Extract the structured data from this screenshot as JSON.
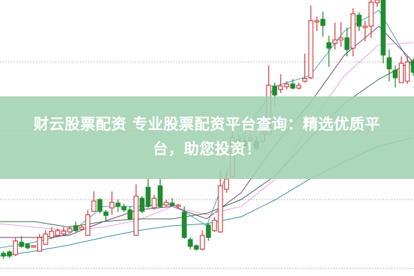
{
  "banner": {
    "line1": "财云股票配资 专业股票配资平台查询：精选优质平",
    "line2": "台，助您投资！"
  },
  "colors": {
    "up": "#d23a3a",
    "down": "#1e8c2e",
    "grid": "#9a9a9a",
    "banner": "#a0d2b0"
  },
  "chart_data": {
    "type": "candlestick",
    "title": "",
    "xlabel": "",
    "ylabel": "",
    "ylim": [
      0,
      100
    ],
    "grid": true,
    "gridlines": [
      77.5,
      52.5,
      27.5,
      2.5
    ],
    "candles": [
      [
        8,
        7,
        8.75,
        6
      ],
      [
        8.5,
        7,
        9,
        6.25
      ],
      [
        7.5,
        12.5,
        13.75,
        7
      ],
      [
        12,
        10.5,
        14.25,
        10
      ],
      [
        11.25,
        10,
        11.75,
        9.5
      ],
      [
        10.25,
        10.75,
        11,
        10
      ],
      [
        8.75,
        13.75,
        15,
        8.5
      ],
      [
        11.25,
        15,
        16.25,
        11
      ],
      [
        13.75,
        16,
        17.5,
        13.25
      ],
      [
        14.5,
        16.25,
        17,
        14
      ],
      [
        15,
        16,
        17.5,
        14.5
      ],
      [
        15.75,
        17,
        18,
        15.5
      ],
      [
        18,
        16.25,
        19.5,
        15.75
      ],
      [
        16.75,
        17.5,
        18.25,
        16.5
      ],
      [
        14.5,
        22,
        23.75,
        14.5
      ],
      [
        23.25,
        27,
        30.5,
        23
      ],
      [
        27.5,
        23.25,
        28,
        22.5
      ],
      [
        23,
        21.75,
        23.75,
        20
      ],
      [
        24.5,
        26.5,
        30.5,
        22
      ],
      [
        26.25,
        25,
        27.5,
        23
      ],
      [
        25,
        23.75,
        26,
        23
      ],
      [
        23.75,
        20.5,
        25,
        20
      ],
      [
        14.5,
        28.75,
        33,
        14.5
      ],
      [
        28,
        23.25,
        28.75,
        22.5
      ],
      [
        32,
        25,
        35,
        24.5
      ],
      [
        24.5,
        28,
        29.25,
        23.75
      ],
      [
        32.5,
        25,
        35,
        24.5
      ],
      [
        25.5,
        26.5,
        27.5,
        25
      ],
      [
        26.25,
        25.25,
        28,
        25
      ],
      [
        25,
        25.5,
        26,
        24.5
      ],
      [
        23,
        13.75,
        25,
        13.25
      ],
      [
        13,
        10.5,
        13.75,
        9.5
      ],
      [
        10.75,
        9.5,
        11.25,
        9
      ],
      [
        9.5,
        14.5,
        16.25,
        9
      ],
      [
        18.25,
        13.75,
        18.75,
        12.5
      ],
      [
        16.25,
        20,
        21.25,
        15.75
      ],
      [
        15.75,
        32.5,
        38,
        15.5
      ],
      [
        31.25,
        35,
        37.5,
        30
      ],
      [
        35.75,
        50,
        53.75,
        35.5
      ],
      [
        49.25,
        47.5,
        51.25,
        46.25
      ],
      [
        48.75,
        47,
        50.5,
        45.5
      ],
      [
        49,
        50,
        51.25,
        47.5
      ],
      [
        48.75,
        46.25,
        50.5,
        45.5
      ],
      [
        48.75,
        51.5,
        53.75,
        47.5
      ],
      [
        51.25,
        69,
        76.25,
        51
      ],
      [
        68.75,
        65.5,
        70,
        61.75
      ],
      [
        67.5,
        68.75,
        73,
        66.25
      ],
      [
        68.5,
        69.5,
        70.5,
        67.5
      ],
      [
        69.5,
        68,
        71.25,
        67.5
      ],
      [
        68,
        69,
        70,
        67.5
      ],
      [
        70.5,
        71.5,
        80.5,
        70
      ],
      [
        71.75,
        92.5,
        98,
        71.25
      ],
      [
        92,
        92.5,
        94,
        88.75
      ],
      [
        93,
        90.75,
        95.75,
        86.75
      ],
      [
        84.5,
        82.5,
        87,
        75.75
      ],
      [
        84.25,
        85.5,
        91.75,
        82
      ],
      [
        85.5,
        86.25,
        92,
        83
      ],
      [
        86.25,
        82,
        90,
        79.5
      ],
      [
        82.5,
        95,
        97,
        79.5
      ],
      [
        94.5,
        90.5,
        95.5,
        88.75
      ],
      [
        90,
        90.5,
        92.5,
        85
      ],
      [
        90.5,
        99.25,
        100,
        86.25
      ],
      [
        99,
        100,
        100,
        97.5
      ],
      [
        100,
        80,
        100,
        77
      ],
      [
        79,
        75,
        82,
        70.5
      ],
      [
        74.5,
        71.75,
        76.25,
        68.25
      ],
      [
        70,
        77,
        79.5,
        70
      ],
      [
        70.5,
        77.5,
        79.5,
        69.5
      ],
      [
        78,
        73.75,
        78.75,
        72.5
      ]
    ],
    "candle_fields": [
      "open",
      "close",
      "high",
      "low"
    ],
    "moving_averages": [
      {
        "color": "#3aa0a8",
        "values": [
          10,
          12,
          15,
          25,
          25,
          26,
          18,
          50,
          68.75,
          72.5,
          88.75,
          96.25,
          75
        ]
      },
      {
        "color": "#6a3a6a",
        "values": [
          13.75,
          13.75,
          14.5,
          19.5,
          23.75,
          25,
          20.5,
          30,
          47.5,
          62.5,
          80,
          90.5,
          77.5
        ]
      },
      {
        "color": "#e79be3",
        "values": [
          18.75,
          17.5,
          16.25,
          17.5,
          20,
          25,
          22,
          25,
          35,
          55,
          72.5,
          83.75,
          84.5
        ]
      },
      {
        "color": "#2e6b3a",
        "values": [
          19.5,
          19.5,
          17.5,
          19.5,
          20.5,
          20.5,
          22.5,
          27.5,
          36.25,
          50,
          62.5,
          71.25,
          78
        ]
      },
      {
        "color": "#2f8a8f",
        "values": [
          7,
          8.75,
          11,
          13.75,
          16.25,
          18,
          18.75,
          21.25,
          27.5,
          35,
          41.25,
          47,
          50
        ]
      }
    ]
  }
}
